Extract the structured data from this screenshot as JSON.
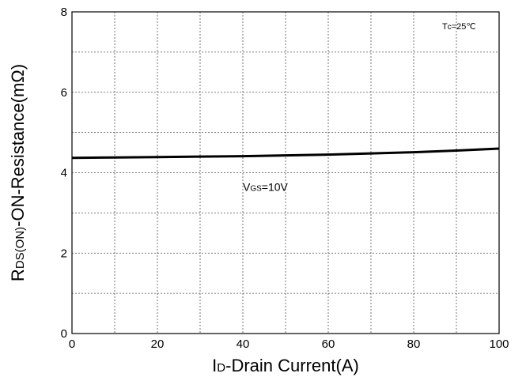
{
  "chart_data": {
    "type": "line",
    "xlabel_main": "I",
    "xlabel_sub": "D",
    "xlabel_rest": "-Drain Current(A)",
    "ylabel_main": "R",
    "ylabel_sub": "DS(ON)",
    "ylabel_rest": "-ON-Resistance(mΩ)",
    "xlim": [
      0,
      100
    ],
    "ylim": [
      0,
      8
    ],
    "xticks": [
      0,
      20,
      40,
      60,
      80,
      100
    ],
    "yticks": [
      0,
      2,
      4,
      6,
      8
    ],
    "x_minor_step": 10,
    "y_minor_step": 1,
    "grid": true,
    "condition_main": "T",
    "condition_sub": "c",
    "condition_rest": "=25℃",
    "series": [
      {
        "label_main": "V",
        "label_sub": "GS",
        "label_rest": "=10V",
        "x": [
          0,
          10,
          20,
          30,
          40,
          50,
          60,
          70,
          80,
          90,
          100
        ],
        "y": [
          4.37,
          4.38,
          4.39,
          4.4,
          4.41,
          4.43,
          4.45,
          4.48,
          4.51,
          4.55,
          4.6
        ]
      }
    ]
  }
}
